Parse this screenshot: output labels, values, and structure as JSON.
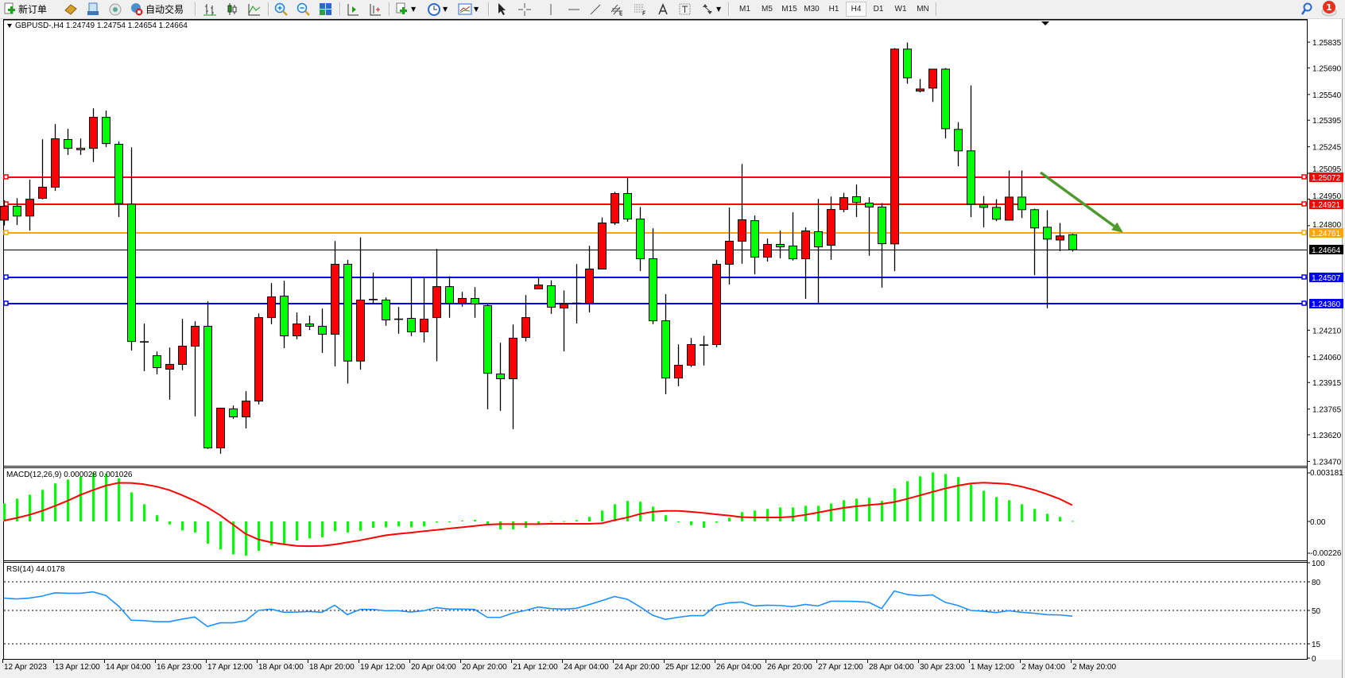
{
  "toolbar": {
    "new_order_label": "新订单",
    "auto_trading_label": "自动交易",
    "timeframes": [
      "M1",
      "M5",
      "M15",
      "M30",
      "H1",
      "H4",
      "D1",
      "W1",
      "MN"
    ],
    "active_timeframe": "H4",
    "notification_count": "1",
    "icons": [
      "new-order-icon",
      "history-center-icon",
      "data-window-icon",
      "signals-icon",
      "auto-trading-icon",
      "bar-chart-icon",
      "candlestick-icon",
      "line-chart-icon",
      "zoom-in-icon",
      "zoom-out-icon",
      "tile-windows-icon",
      "chart-shift-icon",
      "auto-scroll-icon",
      "new-chart-icon",
      "periods-icon",
      "indicators-icon",
      "cursor-icon",
      "crosshair-icon",
      "vertical-line-icon",
      "horizontal-line-icon",
      "trendline-icon",
      "equidistant-channel-icon",
      "fibonacci-icon",
      "text-icon",
      "text-label-icon",
      "arrows-icon",
      "search-icon",
      "notification-icon"
    ]
  },
  "chart": {
    "header": "GBPUSD-,H4  1.24749 1.24754 1.24654 1.24664",
    "colors": {
      "bull": "#ff0000",
      "bear": "#00ff00",
      "doji": "#000000",
      "outline": "#000000",
      "arrow": "#4e9a2e"
    },
    "price_ticks": [
      "1.25835",
      "1.25690",
      "1.25540",
      "1.25395",
      "1.25245",
      "1.25095",
      "1.24950",
      "1.24800",
      "1.24210",
      "1.24060",
      "1.23915",
      "1.23765",
      "1.23620",
      "1.23470"
    ],
    "levels": [
      {
        "price": "1.25072",
        "color": "#ff0000"
      },
      {
        "price": "1.24921",
        "color": "#ff0000"
      },
      {
        "price": "1.24761",
        "color": "#ffa500"
      },
      {
        "price": "1.24507",
        "color": "#0000ff"
      },
      {
        "price": "1.24360",
        "color": "#0000ff"
      }
    ],
    "bid": {
      "price": "1.24664",
      "color": "#000000"
    },
    "time_labels": [
      "12 Apr 2023",
      "13 Apr 12:00",
      "14 Apr 04:00",
      "16 Apr 23:00",
      "17 Apr 12:00",
      "18 Apr 04:00",
      "18 Apr 20:00",
      "19 Apr 12:00",
      "20 Apr 04:00",
      "20 Apr 20:00",
      "21 Apr 12:00",
      "24 Apr 04:00",
      "24 Apr 20:00",
      "25 Apr 12:00",
      "26 Apr 04:00",
      "26 Apr 20:00",
      "27 Apr 12:00",
      "28 Apr 04:00",
      "30 Apr 23:00",
      "1 May 12:00",
      "2 May 04:00",
      "2 May 20:00"
    ],
    "arrow": {
      "from": {
        "bar": 81.5,
        "price": 1.251
      },
      "to": {
        "bar": 88,
        "price": 1.2476
      }
    }
  },
  "macd": {
    "label": "MACD(12,26,9) 0.000028 0.001026",
    "ticks": [
      "0.003181",
      "0.00",
      "-0.00226"
    ],
    "colors": {
      "histogram": "#00ff00",
      "signal": "#ff0000"
    }
  },
  "rsi": {
    "label": "RSI(14) 44.0178",
    "ticks": [
      "100",
      "80",
      "50",
      "15",
      "0"
    ],
    "levels": [
      80,
      50,
      15
    ],
    "color": "#1e90ff"
  },
  "chart_data": [
    {
      "type": "candlestick",
      "title": "GBPUSD-,H4",
      "ylim": [
        1.23445,
        1.25961
      ],
      "ohlc": [
        [
          1.24831,
          1.24943,
          1.24801,
          1.24909
        ],
        [
          1.24909,
          1.24955,
          1.24804,
          1.24854
        ],
        [
          1.24854,
          1.25059,
          1.24772,
          1.24949
        ],
        [
          1.24954,
          1.25287,
          1.24948,
          1.25017
        ],
        [
          1.25017,
          1.25373,
          1.24996,
          1.2529
        ],
        [
          1.25286,
          1.25346,
          1.25199,
          1.25236
        ],
        [
          1.25237,
          1.25292,
          1.25199,
          1.25236
        ],
        [
          1.25236,
          1.25462,
          1.25159,
          1.25411
        ],
        [
          1.25411,
          1.25449,
          1.25244,
          1.25263
        ],
        [
          1.25259,
          1.25275,
          1.24849,
          1.24924
        ],
        [
          1.24921,
          1.25242,
          1.24096,
          1.24147
        ],
        [
          1.24144,
          1.24247,
          1.23979,
          1.24144
        ],
        [
          1.24066,
          1.2409,
          1.23961,
          1.23999
        ],
        [
          1.2399,
          1.24112,
          1.23818,
          1.24017
        ],
        [
          1.24017,
          1.24274,
          1.23984,
          1.2412
        ],
        [
          1.2412,
          1.2426,
          1.23724,
          1.24232
        ],
        [
          1.24232,
          1.24372,
          1.2354,
          1.23546
        ],
        [
          1.23546,
          1.2377,
          1.23513,
          1.2377
        ],
        [
          1.23766,
          1.23785,
          1.2371,
          1.23721
        ],
        [
          1.23721,
          1.23866,
          1.23656,
          1.2381
        ],
        [
          1.2381,
          1.24305,
          1.23791,
          1.24281
        ],
        [
          1.24281,
          1.24476,
          1.24244,
          1.24398
        ],
        [
          1.24402,
          1.24489,
          1.24109,
          1.24178
        ],
        [
          1.24178,
          1.2431,
          1.24159,
          1.24245
        ],
        [
          1.24245,
          1.24292,
          1.24211,
          1.24232
        ],
        [
          1.24232,
          1.24332,
          1.24082,
          1.24187
        ],
        [
          1.24187,
          1.24713,
          1.24006,
          1.24582
        ],
        [
          1.24582,
          1.24606,
          1.23909,
          1.24036
        ],
        [
          1.24036,
          1.24734,
          1.23988,
          1.2438
        ],
        [
          1.24383,
          1.24534,
          1.2436,
          1.24383
        ],
        [
          1.2438,
          1.24395,
          1.24235,
          1.24268
        ],
        [
          1.24272,
          1.24341,
          1.2419,
          1.24272
        ],
        [
          1.24277,
          1.2451,
          1.24177,
          1.24201
        ],
        [
          1.24201,
          1.2451,
          1.24141,
          1.24272
        ],
        [
          1.24281,
          1.24668,
          1.24035,
          1.24456
        ],
        [
          1.24456,
          1.24514,
          1.2428,
          1.24362
        ],
        [
          1.24362,
          1.24426,
          1.24343,
          1.24389
        ],
        [
          1.24389,
          1.24453,
          1.2428,
          1.24358
        ],
        [
          1.24349,
          1.24358,
          1.23764,
          1.23967
        ],
        [
          1.23963,
          1.24139,
          1.23755,
          1.23936
        ],
        [
          1.23936,
          1.24242,
          1.23652,
          1.24165
        ],
        [
          1.24169,
          1.24408,
          1.24147,
          1.24281
        ],
        [
          1.24443,
          1.2451,
          1.24443,
          1.24465
        ],
        [
          1.24461,
          1.24492,
          1.24302,
          1.2434
        ],
        [
          1.24335,
          1.24434,
          1.24091,
          1.24358
        ],
        [
          1.24362,
          1.24583,
          1.24248,
          1.24362
        ],
        [
          1.24362,
          1.24686,
          1.24311,
          1.24555
        ],
        [
          1.24555,
          1.24846,
          1.24555,
          1.24815
        ],
        [
          1.24815,
          1.2499,
          1.24804,
          1.24981
        ],
        [
          1.24981,
          1.25068,
          1.24822,
          1.24837
        ],
        [
          1.24837,
          1.24905,
          1.24544,
          1.24613
        ],
        [
          1.24613,
          1.24785,
          1.24244,
          1.24263
        ],
        [
          1.24263,
          1.24413,
          1.23849,
          1.2394
        ],
        [
          1.2394,
          1.2413,
          1.23894,
          1.24012
        ],
        [
          1.24012,
          1.24166,
          1.24002,
          1.24129
        ],
        [
          1.24126,
          1.24178,
          1.24011,
          1.24126
        ],
        [
          1.24129,
          1.24606,
          1.24114,
          1.24582
        ],
        [
          1.24582,
          1.24902,
          1.24468,
          1.24712
        ],
        [
          1.24712,
          1.25148,
          1.24585,
          1.24833
        ],
        [
          1.24828,
          1.24857,
          1.24526,
          1.24622
        ],
        [
          1.24622,
          1.24727,
          1.24598,
          1.24694
        ],
        [
          1.24694,
          1.24772,
          1.24616,
          1.2468
        ],
        [
          1.24685,
          1.24875,
          1.24603,
          1.24613
        ],
        [
          1.24613,
          1.2479,
          1.24387,
          1.2477
        ],
        [
          1.24766,
          1.24951,
          1.24358,
          1.2468
        ],
        [
          1.24689,
          1.24964,
          1.24607,
          1.24891
        ],
        [
          1.24891,
          1.24985,
          1.24876,
          1.24958
        ],
        [
          1.24963,
          1.25032,
          1.24849,
          1.24931
        ],
        [
          1.24927,
          1.2496,
          1.2463,
          1.24905
        ],
        [
          1.24905,
          1.24927,
          1.2445,
          1.24698
        ],
        [
          1.24697,
          1.25802,
          1.24543,
          1.25796
        ],
        [
          1.25796,
          1.25833,
          1.25601,
          1.25634
        ],
        [
          1.25559,
          1.25627,
          1.25552,
          1.25571
        ],
        [
          1.25576,
          1.25683,
          1.25498,
          1.25683
        ],
        [
          1.25683,
          1.25689,
          1.25292,
          1.25347
        ],
        [
          1.25343,
          1.25384,
          1.25135,
          1.25222
        ],
        [
          1.25222,
          1.25591,
          1.24848,
          1.24921
        ],
        [
          1.24918,
          1.24967,
          1.2479,
          1.24903
        ],
        [
          1.24903,
          1.24949,
          1.24825,
          1.24836
        ],
        [
          1.24831,
          1.25111,
          1.24831,
          1.24961
        ],
        [
          1.24961,
          1.25111,
          1.24843,
          1.2489
        ],
        [
          1.2489,
          1.24896,
          1.2452,
          1.24787
        ],
        [
          1.24791,
          1.24887,
          1.24334,
          1.24724
        ],
        [
          1.24719,
          1.24815,
          1.24656,
          1.24742
        ],
        [
          1.24749,
          1.24754,
          1.24654,
          1.24664
        ]
      ]
    },
    {
      "type": "bar+line",
      "title": "MACD(12,26,9)",
      "ylim": [
        -0.00242,
        0.00338
      ],
      "series": [
        {
          "name": "MACD",
          "type": "bar",
          "values": [
            0.00114,
            0.00145,
            0.0017,
            0.002,
            0.00241,
            0.00266,
            0.00283,
            0.00308,
            0.00303,
            0.00274,
            0.00185,
            0.00109,
            0.00039,
            -0.00019,
            -0.00057,
            -0.00071,
            -0.00141,
            -0.00177,
            -0.00209,
            -0.00217,
            -0.00187,
            -0.00152,
            -0.00141,
            -0.00121,
            -0.00108,
            -0.00101,
            -0.00062,
            -0.00071,
            -0.00059,
            -0.0004,
            -0.00037,
            -0.00032,
            -0.00037,
            -0.00032,
            -7e-05,
            -3e-05,
            5e-05,
            0.0001,
            -0.00015,
            -0.00051,
            -0.00051,
            -0.0004,
            -0.00017,
            2e-05,
            2e-05,
            8e-05,
            0.00029,
            0.00069,
            0.00109,
            0.0013,
            0.00125,
            0.00094,
            0.00039,
            -3e-05,
            -0.00024,
            -0.0004,
            -8e-05,
            0.00024,
            0.00059,
            0.00069,
            0.00079,
            0.00089,
            0.00089,
            0.00099,
            0.00099,
            0.00114,
            0.00135,
            0.00145,
            0.0015,
            0.0013,
            0.0021,
            0.00256,
            0.00286,
            0.00311,
            0.00301,
            0.00281,
            0.00241,
            0.00195,
            0.00155,
            0.00135,
            0.00109,
            0.00079,
            0.00049,
            0.00029,
            3e-05
          ]
        },
        {
          "name": "Signal",
          "type": "line",
          "values": [
            5e-05,
            0.00022,
            0.00042,
            0.00067,
            0.00098,
            0.00131,
            0.00168,
            0.00199,
            0.00227,
            0.00245,
            0.00244,
            0.00236,
            0.00221,
            0.00199,
            0.00167,
            0.00131,
            0.00089,
            0.00039,
            -0.0002,
            -0.00079,
            -0.00114,
            -0.00133,
            -0.00145,
            -0.00155,
            -0.00157,
            -0.00155,
            -0.00146,
            -0.00133,
            -0.0012,
            -0.00104,
            -0.00088,
            -0.00079,
            -0.00071,
            -0.00062,
            -0.00054,
            -0.00045,
            -0.00037,
            -0.00029,
            -0.0002,
            -0.00017,
            -0.00017,
            -0.00017,
            -0.00017,
            -0.00015,
            -0.00015,
            -0.00015,
            -0.00015,
            -0.00012,
            8e-05,
            0.00025,
            0.00047,
            0.00061,
            0.00067,
            0.00067,
            0.00061,
            0.00054,
            0.00045,
            0.00037,
            0.00027,
            0.00025,
            0.00025,
            0.00025,
            0.0003,
            0.00042,
            0.00056,
            0.00072,
            0.00086,
            0.00096,
            0.00104,
            0.00111,
            0.00123,
            0.00143,
            0.00165,
            0.00187,
            0.00209,
            0.00227,
            0.00241,
            0.00246,
            0.00242,
            0.00237,
            0.00221,
            0.002,
            0.00173,
            0.00143,
            0.00103
          ]
        }
      ]
    },
    {
      "type": "line",
      "title": "RSI(14)",
      "ylim": [
        0,
        100
      ],
      "values": [
        63,
        62,
        63,
        65,
        68.5,
        68,
        68,
        69.5,
        65.7,
        54.7,
        39.8,
        39.3,
        38.2,
        38.2,
        40.9,
        43.1,
        33.2,
        37,
        37,
        39.3,
        50,
        51.4,
        48.1,
        48.3,
        48.9,
        48.1,
        55.5,
        45.6,
        51.1,
        51.1,
        49.7,
        49.7,
        48.3,
        49.7,
        53,
        51.4,
        51.4,
        51.1,
        42.8,
        42.6,
        47.2,
        50,
        53.6,
        51.9,
        51.4,
        52.2,
        56.1,
        60.2,
        64.6,
        61.8,
        53.9,
        45,
        40.6,
        42.8,
        44.5,
        44.5,
        55.2,
        58,
        58.8,
        54.7,
        55.5,
        55.2,
        53.9,
        56.3,
        54.7,
        59.6,
        59.6,
        59.4,
        58.5,
        51.9,
        70.4,
        66.8,
        65.4,
        66.3,
        58.5,
        55.2,
        50,
        49.2,
        47.8,
        49.7,
        48.1,
        47,
        45.6,
        45.3,
        44.0178
      ]
    }
  ]
}
